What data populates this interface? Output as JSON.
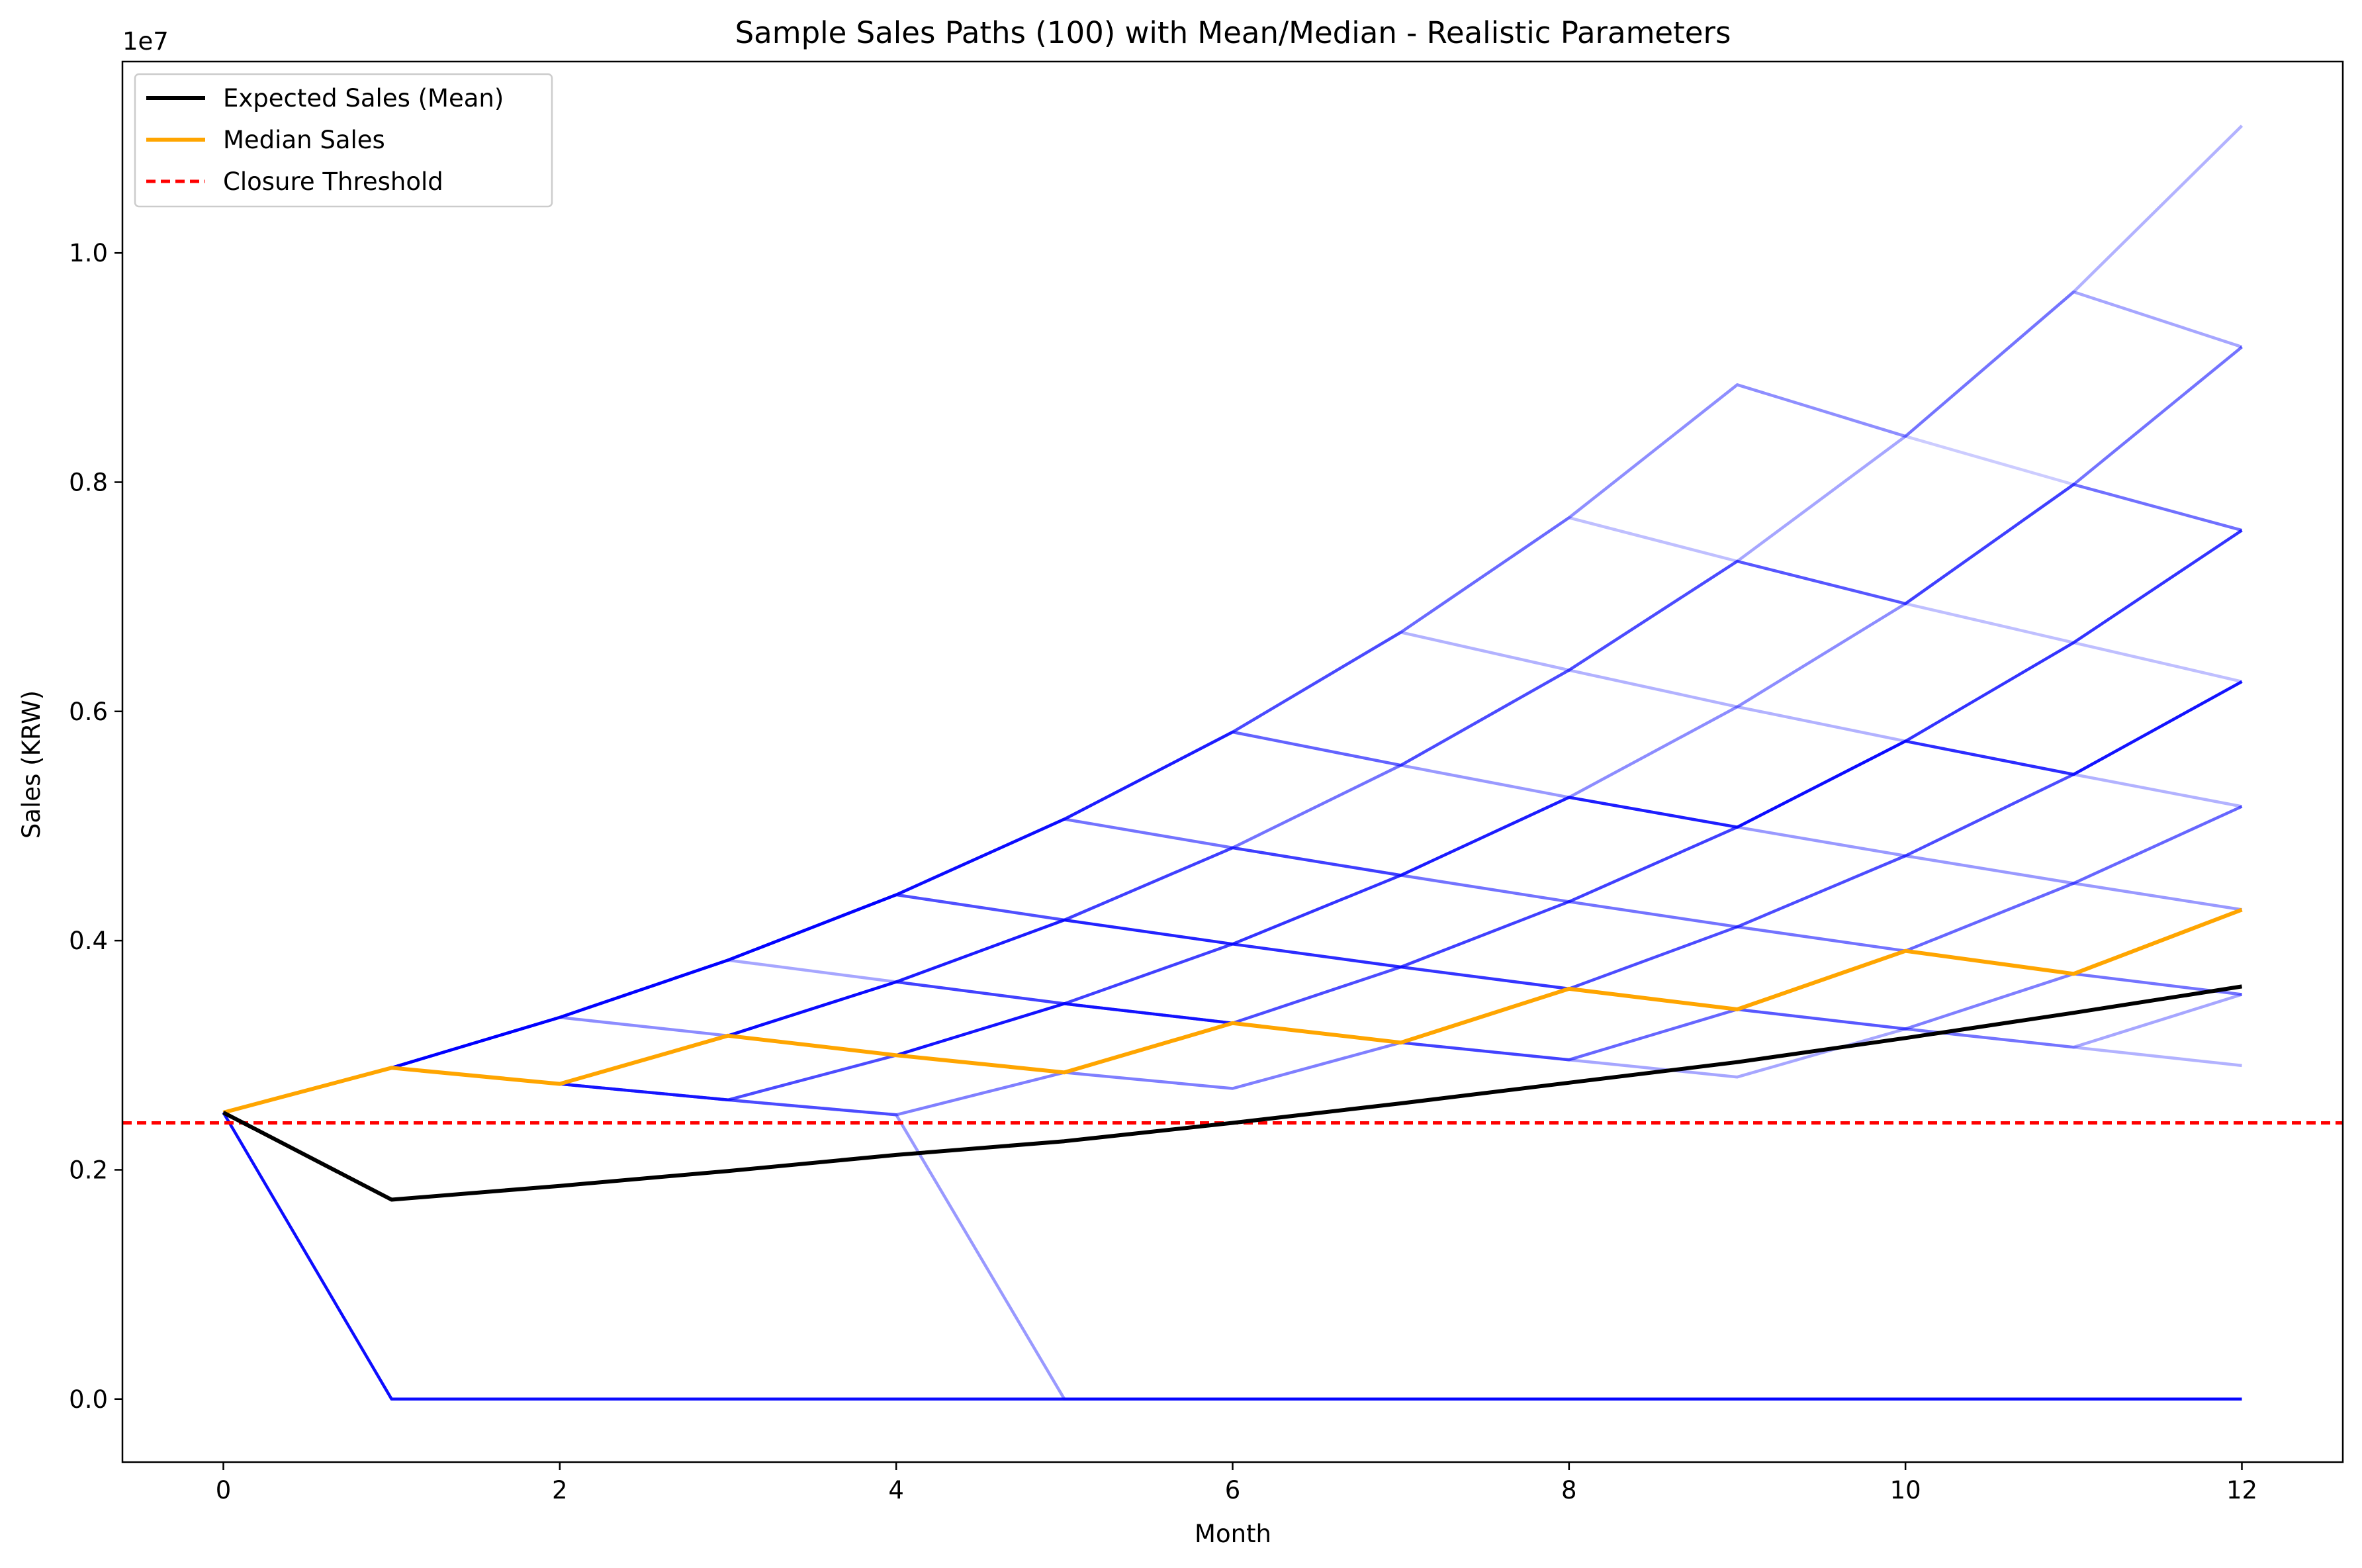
{
  "chart_data": {
    "type": "line",
    "title": "Sample Sales Paths (100) with Mean/Median - Realistic Parameters",
    "xlabel": "Month",
    "ylabel": "Sales (KRW)",
    "y_multiplier_label": "1e7",
    "x": [
      0,
      1,
      2,
      3,
      4,
      5,
      6,
      7,
      8,
      9,
      10,
      11,
      12
    ],
    "xlim": [
      -0.6,
      12.6
    ],
    "ylim": [
      -0.055,
      1.167
    ],
    "x_ticks": [
      0,
      2,
      4,
      6,
      8,
      10,
      12
    ],
    "x_tick_labels": [
      "0",
      "2",
      "4",
      "6",
      "8",
      "10",
      "12"
    ],
    "y_ticks": [
      0.0,
      0.2,
      0.4,
      0.6,
      0.8,
      1.0
    ],
    "y_tick_labels": [
      "0.0",
      "0.2",
      "0.4",
      "0.6",
      "0.8",
      "1.0"
    ],
    "grid": false,
    "legend_position": "top-left",
    "legend": [
      {
        "label": "Expected Sales (Mean)",
        "color": "#000000",
        "style": "solid"
      },
      {
        "label": "Median Sales",
        "color": "#ffa500",
        "style": "solid"
      },
      {
        "label": "Closure Threshold",
        "color": "#ff0000",
        "style": "dashed"
      }
    ],
    "sample_path_color": "#0000ff",
    "sample_paths": [
      {
        "values": [
          0.25,
          0.0,
          0.0,
          0.0,
          0.0,
          0.0,
          0.0,
          0.0,
          0.0,
          0.0,
          0.0,
          0.0,
          0.0
        ],
        "opacity": 0.95
      },
      {
        "values": [
          0.25,
          0.289,
          0.333,
          0.383,
          0.44,
          0.506,
          0.582,
          0.669,
          0.769,
          0.885,
          0.84,
          0.966,
          1.111
        ],
        "opacity": 0.3
      },
      {
        "values": [
          0.25,
          0.289,
          0.333,
          0.383,
          0.44,
          0.506,
          0.582,
          0.553,
          0.636,
          0.731,
          0.84,
          0.966,
          0.918
        ],
        "opacity": 0.35
      },
      {
        "values": [
          0.25,
          0.289,
          0.333,
          0.383,
          0.44,
          0.418,
          0.481,
          0.553,
          0.636,
          0.731,
          0.694,
          0.798,
          0.918
        ],
        "opacity": 0.55
      },
      {
        "values": [
          0.25,
          0.289,
          0.333,
          0.317,
          0.364,
          0.418,
          0.481,
          0.457,
          0.525,
          0.604,
          0.694,
          0.798,
          0.758
        ],
        "opacity": 0.45
      },
      {
        "values": [
          0.25,
          0.289,
          0.275,
          0.317,
          0.364,
          0.418,
          0.397,
          0.457,
          0.525,
          0.499,
          0.574,
          0.66,
          0.758
        ],
        "opacity": 0.8
      },
      {
        "values": [
          0.25,
          0.289,
          0.275,
          0.317,
          0.3,
          0.345,
          0.397,
          0.377,
          0.434,
          0.499,
          0.574,
          0.545,
          0.626
        ],
        "opacity": 0.75
      },
      {
        "values": [
          0.25,
          0.289,
          0.275,
          0.261,
          0.3,
          0.345,
          0.328,
          0.377,
          0.358,
          0.412,
          0.474,
          0.545,
          0.626
        ],
        "opacity": 0.7
      },
      {
        "values": [
          0.25,
          0.289,
          0.275,
          0.317,
          0.364,
          0.345,
          0.328,
          0.311,
          0.296,
          0.34,
          0.391,
          0.45,
          0.517
        ],
        "opacity": 0.6
      },
      {
        "values": [
          0.25,
          0.289,
          0.275,
          0.261,
          0.248,
          0.285,
          0.271,
          0.311,
          0.358,
          0.34,
          0.323,
          0.371,
          0.427
        ],
        "opacity": 0.5
      },
      {
        "values": [
          0.25,
          0.289,
          0.333,
          0.383,
          0.364,
          0.345,
          0.328,
          0.311,
          0.296,
          0.281,
          0.323,
          0.307,
          0.353
        ],
        "opacity": 0.35
      },
      {
        "values": [
          0.25,
          0.289,
          0.333,
          0.383,
          0.44,
          0.418,
          0.397,
          0.377,
          0.358,
          0.34,
          0.323,
          0.307,
          0.291
        ],
        "opacity": 0.3
      },
      {
        "values": [
          0.25,
          0.289,
          0.333,
          0.383,
          0.44,
          0.506,
          0.481,
          0.457,
          0.434,
          0.412,
          0.391,
          0.371,
          0.353
        ],
        "opacity": 0.55
      },
      {
        "values": [
          0.25,
          0.289,
          0.333,
          0.383,
          0.44,
          0.506,
          0.582,
          0.553,
          0.525,
          0.499,
          0.474,
          0.45,
          0.427
        ],
        "opacity": 0.4
      },
      {
        "values": [
          0.25,
          0.289,
          0.333,
          0.383,
          0.44,
          0.506,
          0.582,
          0.669,
          0.636,
          0.604,
          0.574,
          0.545,
          0.517
        ],
        "opacity": 0.3
      },
      {
        "values": [
          0.25,
          0.289,
          0.333,
          0.383,
          0.44,
          0.506,
          0.582,
          0.669,
          0.769,
          0.731,
          0.694,
          0.66,
          0.626
        ],
        "opacity": 0.25
      },
      {
        "values": [
          0.25,
          0.289,
          0.333,
          0.383,
          0.44,
          0.506,
          0.582,
          0.669,
          0.769,
          0.885,
          0.84,
          0.798,
          0.758
        ],
        "opacity": 0.2
      },
      {
        "values": [
          0.25,
          0.289,
          0.275,
          0.261,
          0.248,
          0.0,
          0.0,
          0.0,
          0.0,
          0.0,
          0.0,
          0.0,
          0.0
        ],
        "opacity": 0.4
      }
    ],
    "series": [
      {
        "name": "Expected Sales (Mean)",
        "color": "#000000",
        "values": [
          0.25,
          0.174,
          0.186,
          0.199,
          0.213,
          0.225,
          0.241,
          0.258,
          0.276,
          0.294,
          0.315,
          0.337,
          0.36
        ]
      },
      {
        "name": "Median Sales",
        "color": "#ffa500",
        "values": [
          0.25,
          0.289,
          0.275,
          0.317,
          0.3,
          0.285,
          0.328,
          0.311,
          0.358,
          0.34,
          0.391,
          0.371,
          0.427
        ]
      }
    ],
    "threshold": {
      "name": "Closure Threshold",
      "value": 0.241,
      "color": "#ff0000"
    }
  }
}
